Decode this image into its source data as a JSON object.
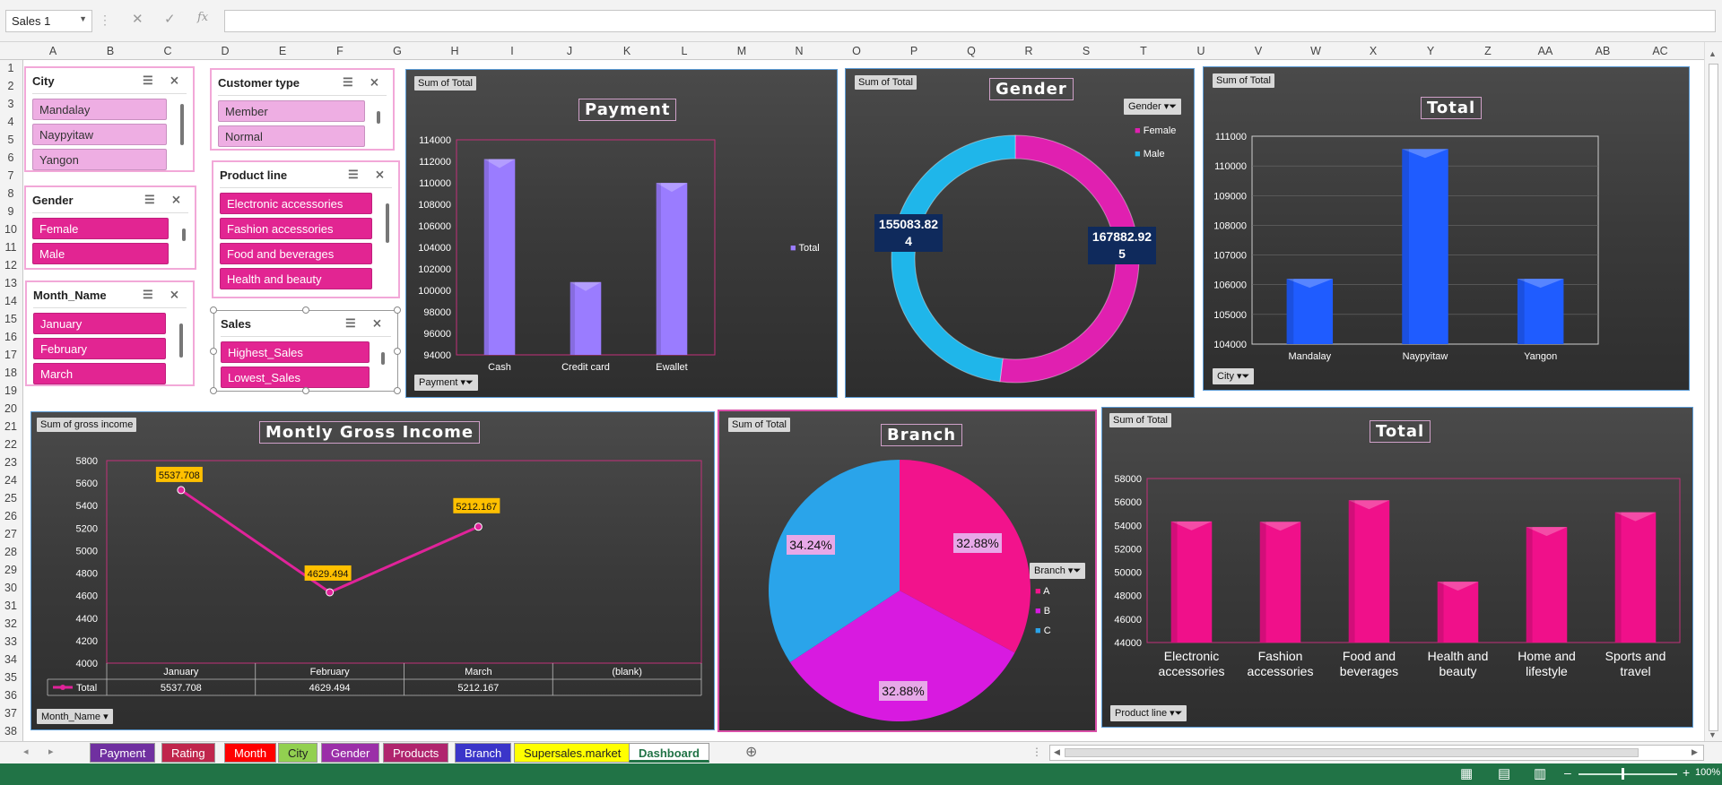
{
  "namebox": {
    "value": "Sales 1"
  },
  "formula_icons": {
    "cancel": "✕",
    "enter": "✓",
    "function": "fx"
  },
  "columns": [
    "A",
    "B",
    "C",
    "D",
    "E",
    "F",
    "G",
    "H",
    "I",
    "J",
    "K",
    "L",
    "M",
    "N",
    "O",
    "P",
    "Q",
    "R",
    "S",
    "T",
    "U",
    "V",
    "W",
    "X",
    "Y",
    "Z",
    "AA",
    "AB",
    "AC"
  ],
  "rows": [
    "1",
    "2",
    "3",
    "4",
    "5",
    "6",
    "7",
    "8",
    "9",
    "10",
    "11",
    "12",
    "13",
    "14",
    "15",
    "16",
    "17",
    "18",
    "19",
    "20",
    "21",
    "22",
    "23",
    "24",
    "25",
    "26",
    "27",
    "28",
    "29",
    "30",
    "31",
    "32",
    "33",
    "34",
    "35",
    "36",
    "37",
    "38"
  ],
  "slicers": {
    "city": {
      "title": "City",
      "items": [
        "Mandalay",
        "Naypyitaw",
        "Yangon"
      ]
    },
    "customer": {
      "title": "Customer type",
      "items": [
        "Member",
        "Normal"
      ]
    },
    "gender": {
      "title": "Gender",
      "items": [
        "Female",
        "Male"
      ]
    },
    "product": {
      "title": "Product line",
      "items": [
        "Electronic accessories",
        "Fashion accessories",
        "Food and beverages",
        "Health and beauty"
      ]
    },
    "month": {
      "title": "Month_Name",
      "items": [
        "January",
        "February",
        "March"
      ]
    },
    "sales": {
      "title": "Sales",
      "items": [
        "Highest_Sales",
        "Lowest_Sales"
      ]
    }
  },
  "charts": {
    "payment": {
      "tag": "Sum of Total",
      "title": "Payment",
      "filter": "Payment",
      "legend": "Total"
    },
    "gender": {
      "tag": "Sum of Total",
      "title": "Gender",
      "filter": "Gender",
      "label_male": "155083.82\n4",
      "label_female": "167882.92\n5"
    },
    "city": {
      "tag": "Sum of Total",
      "title": "Total",
      "filter": "City"
    },
    "monthly": {
      "tag": "Sum of gross income",
      "title": "Montly Gross Income",
      "filter": "Month_Name",
      "table_series": "Total",
      "table_values": [
        "5537.708",
        "4629.494",
        "5212.167",
        ""
      ]
    },
    "branch": {
      "tag": "Sum of Total",
      "title": "Branch",
      "filter": "Branch",
      "labels": [
        "32.88%",
        "32.88%",
        "34.24%"
      ]
    },
    "product": {
      "tag": "Sum of Total",
      "title": "Total",
      "filter": "Product line"
    }
  },
  "chart_data": [
    {
      "type": "bar",
      "title": "Payment",
      "categories": [
        "Cash",
        "Credit card",
        "Ewallet"
      ],
      "series": [
        {
          "name": "Total",
          "values": [
            112206,
            100767,
            109993
          ]
        }
      ],
      "ylim": [
        94000,
        114000
      ],
      "ticks": [
        94000,
        96000,
        98000,
        100000,
        102000,
        104000,
        106000,
        108000,
        110000,
        112000,
        114000
      ],
      "color": "#9a7cff"
    },
    {
      "type": "pie",
      "title": "Gender",
      "categories": [
        "Female",
        "Male"
      ],
      "values": [
        167882.925,
        155083.824
      ],
      "colors": [
        "#e020b0",
        "#1fb6ea"
      ]
    },
    {
      "type": "bar",
      "title": "Total",
      "categories": [
        "Mandalay",
        "Naypyitaw",
        "Yangon"
      ],
      "series": [
        {
          "name": "Total",
          "values": [
            106197.672,
            110568.707,
            106200.37
          ]
        }
      ],
      "ylim": [
        104000,
        111000
      ],
      "ticks": [
        104000,
        105000,
        106000,
        107000,
        108000,
        109000,
        110000,
        111000
      ],
      "color": "#1f5cff"
    },
    {
      "type": "line",
      "title": "Montly Gross Income",
      "categories": [
        "January",
        "February",
        "March",
        "(blank)"
      ],
      "series": [
        {
          "name": "Total",
          "values": [
            5537.708,
            4629.494,
            5212.167,
            null
          ]
        }
      ],
      "ylim": [
        4000,
        5800
      ],
      "ticks": [
        4000,
        4200,
        4400,
        4600,
        4800,
        5000,
        5200,
        5400,
        5600,
        5800
      ],
      "data_labels": [
        "5537.708",
        "4629.494",
        "5212.167"
      ],
      "color": "#e0239a"
    },
    {
      "type": "pie",
      "title": "Branch",
      "categories": [
        "A",
        "B",
        "C"
      ],
      "values": [
        32.88,
        32.88,
        34.24
      ],
      "labels": [
        "32.88%",
        "32.88%",
        "34.24%"
      ],
      "colors": [
        "#f2138c",
        "#d81ae0",
        "#2aa4ea"
      ]
    },
    {
      "type": "bar",
      "title": "Total",
      "categories": [
        "Electronic accessories",
        "Fashion accessories",
        "Food and beverages",
        "Health and beauty",
        "Home and lifestyle",
        "Sports and travel"
      ],
      "series": [
        {
          "name": "Total",
          "values": [
            54337.53,
            54305.9,
            56144.84,
            49193.74,
            53861.91,
            55122.83
          ]
        }
      ],
      "ylim": [
        44000,
        58000
      ],
      "ticks": [
        44000,
        46000,
        48000,
        50000,
        52000,
        54000,
        56000,
        58000
      ],
      "color": "#f0108a"
    }
  ],
  "sheet_tabs": [
    {
      "label": "Payment",
      "bg": "#7030a0",
      "fg": "#ffffff"
    },
    {
      "label": "Rating",
      "bg": "#c0264c",
      "fg": "#ffffff"
    },
    {
      "label": "Month",
      "bg": "#ff0000",
      "fg": "#ffffff"
    },
    {
      "label": "City",
      "bg": "#92d050",
      "fg": "#222222"
    },
    {
      "label": "Gender",
      "bg": "#9b2fa8",
      "fg": "#ffffff"
    },
    {
      "label": "Products",
      "bg": "#b0256e",
      "fg": "#ffffff"
    },
    {
      "label": "Branch",
      "bg": "#3b35c9",
      "fg": "#ffffff"
    },
    {
      "label": "Supersales.market",
      "bg": "#ffff00",
      "fg": "#222222"
    },
    {
      "label": "Dashboard",
      "bg": "#ffffff",
      "fg": "#217346"
    }
  ],
  "status": {
    "zoom": "100%"
  }
}
